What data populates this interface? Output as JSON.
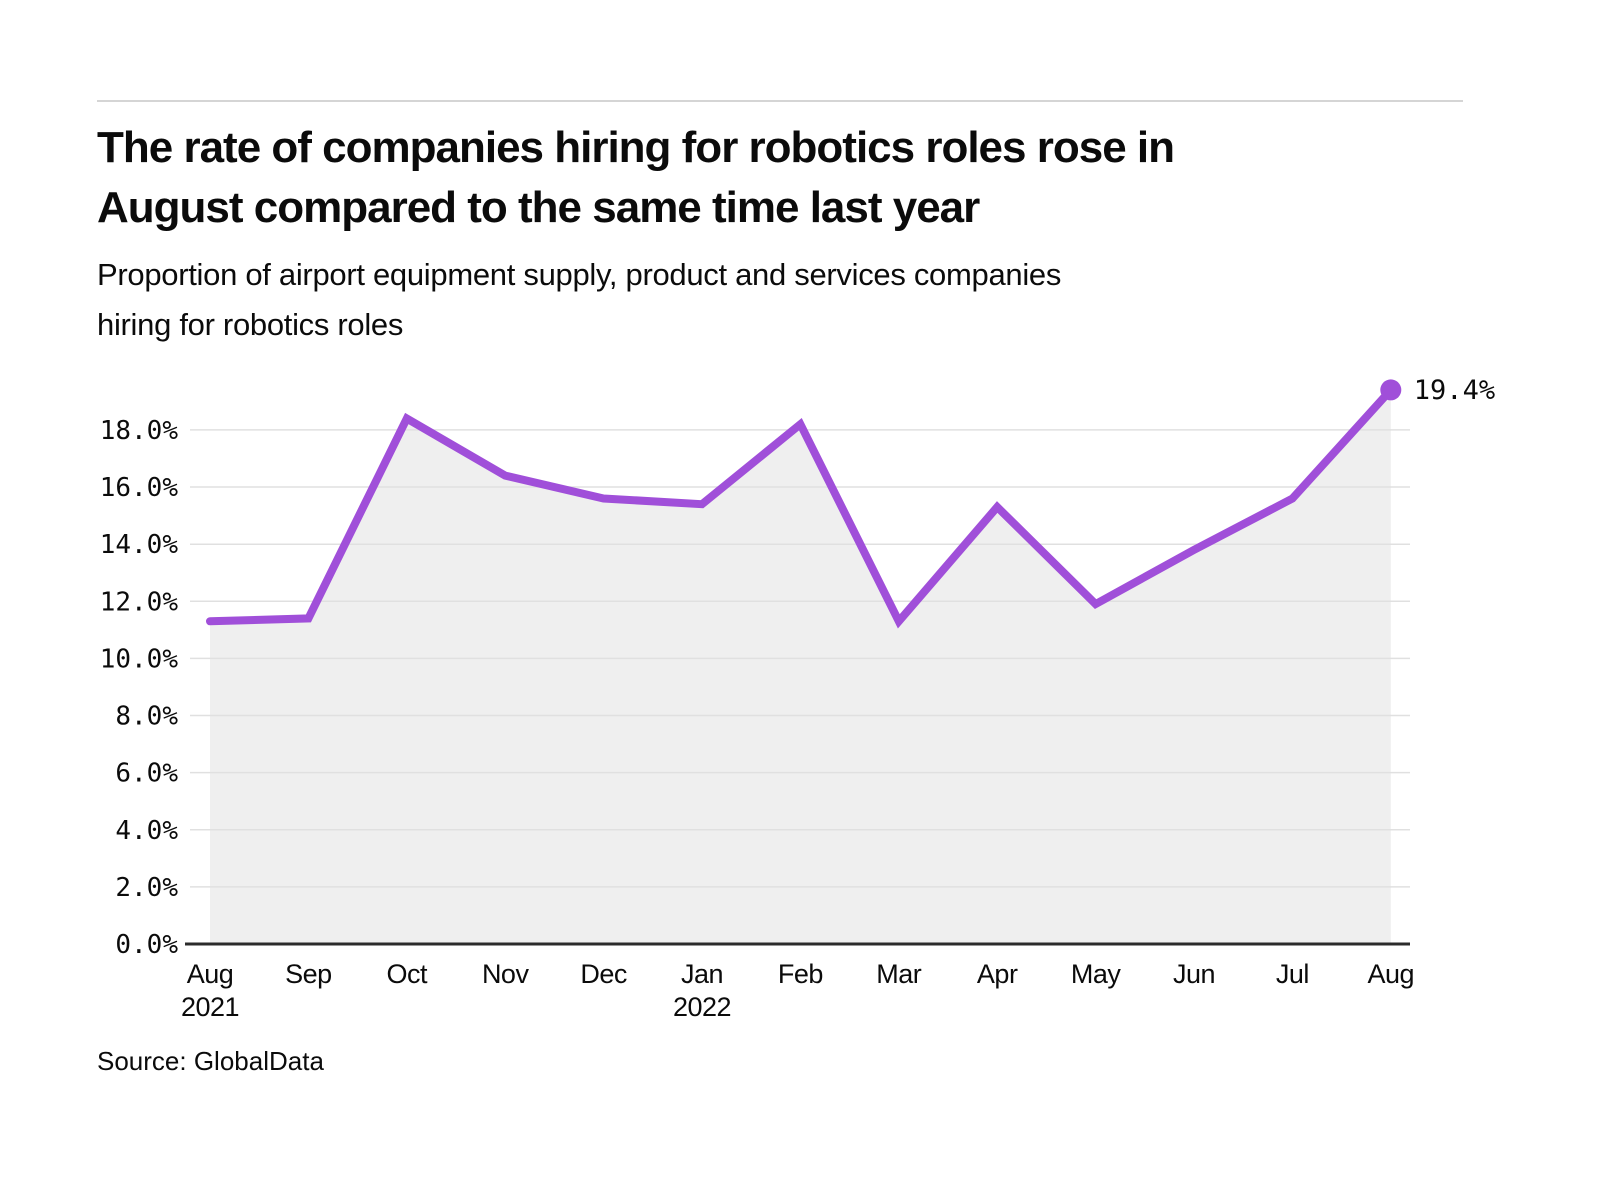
{
  "header": {
    "title_line1": "The rate of companies hiring for robotics roles rose in",
    "title_line2": "August compared to the same time last year",
    "subtitle_line1": "Proportion of airport equipment supply, product and services companies",
    "subtitle_line2": "hiring for robotics roles"
  },
  "footer": {
    "source": "Source: GlobalData"
  },
  "chart_data": {
    "type": "line",
    "title": "The rate of companies hiring for robotics roles rose in August compared to the same time last year",
    "subtitle": "Proportion of airport equipment supply, product and services companies hiring for robotics roles",
    "categories": [
      "Aug",
      "Sep",
      "Oct",
      "Nov",
      "Dec",
      "Jan",
      "Feb",
      "Mar",
      "Apr",
      "May",
      "Jun",
      "Jul",
      "Aug"
    ],
    "year_labels": [
      {
        "index": 0,
        "year": "2021"
      },
      {
        "index": 5,
        "year": "2022"
      }
    ],
    "values": [
      11.3,
      11.4,
      18.4,
      16.4,
      15.6,
      15.4,
      18.2,
      11.3,
      15.3,
      11.9,
      13.8,
      15.6,
      19.4
    ],
    "unit": "%",
    "ylim": [
      0,
      20
    ],
    "yticks": [
      0,
      2,
      4,
      6,
      8,
      10,
      12,
      14,
      16,
      18
    ],
    "ytick_decimals": 1,
    "grid": "horizontal",
    "legend": "none",
    "annotation": {
      "index": 12,
      "label": "19.4%"
    },
    "colors": {
      "line": "#A04FD9",
      "marker": "#A04FD9",
      "area_fill": "#EFEFEF",
      "gridline": "#E0E0E0",
      "axis_line": "#2B2B2B",
      "tick_text": "#0B0B0B"
    }
  }
}
